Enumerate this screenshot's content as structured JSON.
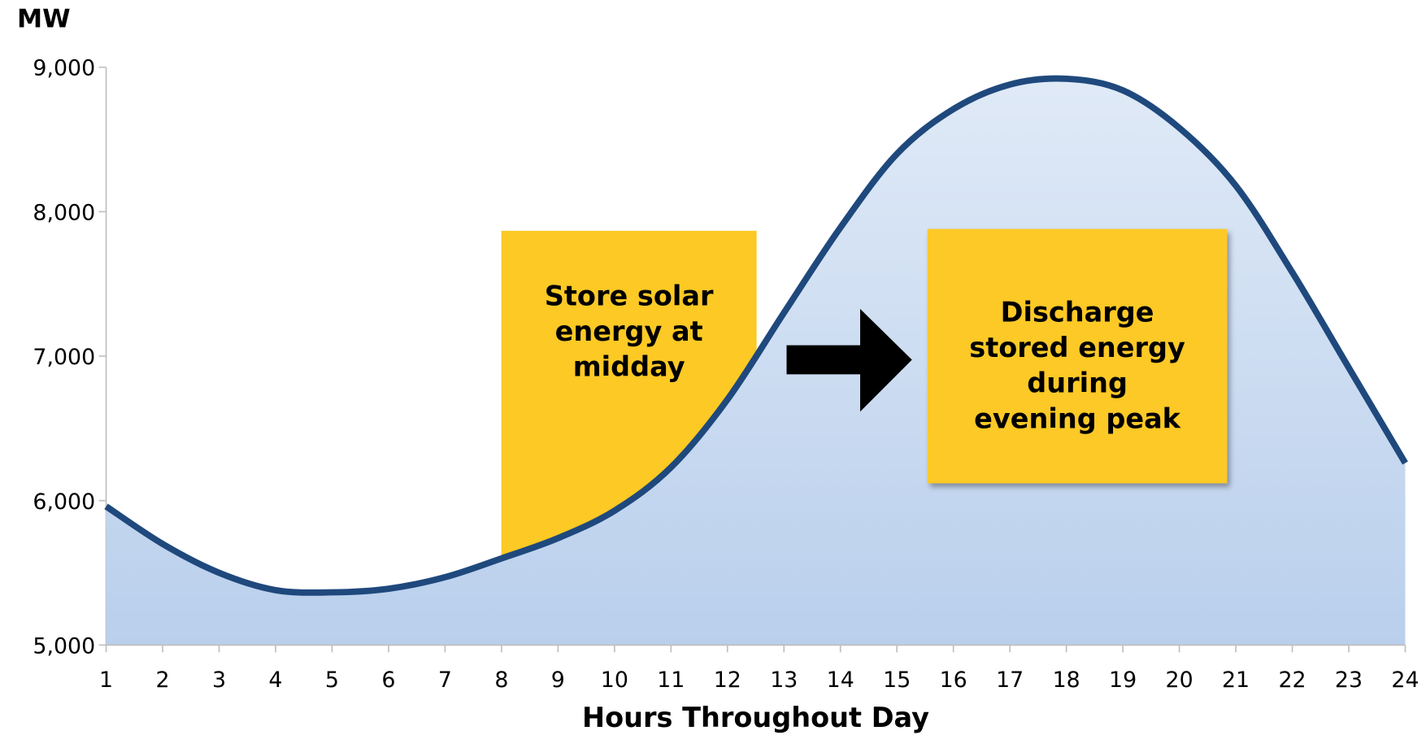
{
  "chart_data": {
    "type": "area",
    "ylabel": "MW",
    "xlabel": "Hours Throughout Day",
    "x": [
      1,
      2,
      3,
      4,
      5,
      6,
      7,
      8,
      9,
      10,
      11,
      12,
      13,
      14,
      15,
      16,
      17,
      18,
      19,
      20,
      21,
      22,
      23,
      24
    ],
    "values": [
      5960,
      5700,
      5500,
      5380,
      5365,
      5390,
      5470,
      5600,
      5740,
      5930,
      6230,
      6700,
      7300,
      7890,
      8400,
      8710,
      8880,
      8920,
      8840,
      8580,
      8180,
      7580,
      6920,
      6260
    ],
    "color": "#1f497d",
    "xlim": [
      1,
      24
    ],
    "xticks": [
      1,
      2,
      3,
      4,
      5,
      6,
      7,
      8,
      9,
      10,
      11,
      12,
      13,
      14,
      15,
      16,
      17,
      18,
      19,
      20,
      21,
      22,
      23,
      24
    ],
    "ylim": [
      5000,
      9000
    ],
    "yticks": [
      {
        "value": 5000,
        "label": "5,000"
      },
      {
        "value": 6000,
        "label": "6,000"
      },
      {
        "value": 7000,
        "label": "7,000"
      },
      {
        "value": 8000,
        "label": "8,000"
      },
      {
        "value": 9000,
        "label": "9,000"
      }
    ],
    "annotations": [
      {
        "lines": [
          "Store solar",
          "energy at",
          "midday"
        ]
      },
      {
        "lines": [
          "Discharge",
          "stored energy",
          "during",
          "evening peak"
        ]
      }
    ]
  }
}
